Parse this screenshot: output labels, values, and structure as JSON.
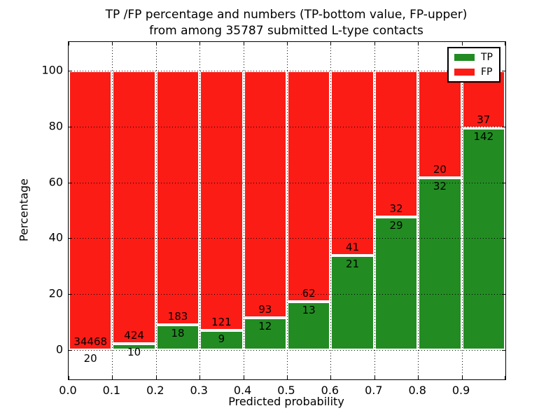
{
  "title": {
    "line1": "TP /FP percentage and numbers (TP-bottom value, FP-upper)",
    "line2": "from among 35787 submitted L-type contacts"
  },
  "axes": {
    "xlabel": "Predicted probability",
    "ylabel": "Percentage",
    "x_ticks": [
      "0.0",
      "0.1",
      "0.2",
      "0.3",
      "0.4",
      "0.5",
      "0.6",
      "0.7",
      "0.8",
      "0.9"
    ],
    "y_ticks": [
      "0",
      "20",
      "40",
      "60",
      "80",
      "100"
    ],
    "y_tick_values": [
      0,
      20,
      40,
      60,
      80,
      100
    ]
  },
  "legend": {
    "position": "upper right",
    "items": [
      {
        "label": "TP",
        "color": "#228c22"
      },
      {
        "label": "FP",
        "color": "#fc1c16"
      }
    ]
  },
  "chart_data": {
    "type": "bar",
    "stacked": true,
    "normalized": "each bin scaled to 100%",
    "title": "TP /FP percentage and numbers (TP-bottom value, FP-upper) from among 35787 submitted L-type contacts",
    "xlabel": "Predicted probability",
    "ylabel": "Percentage",
    "xlim": [
      0.0,
      1.0
    ],
    "ylim": [
      -11,
      110
    ],
    "grid": "dotted",
    "legend_position": "upper right",
    "total_contacts": 35787,
    "bin_edges": [
      0.0,
      0.1,
      0.2,
      0.3,
      0.4,
      0.5,
      0.6,
      0.7,
      0.8,
      0.9,
      1.0
    ],
    "categories": [
      "0.0-0.1",
      "0.1-0.2",
      "0.2-0.3",
      "0.3-0.4",
      "0.4-0.5",
      "0.5-0.6",
      "0.6-0.7",
      "0.7-0.8",
      "0.8-0.9",
      "0.9-1.0"
    ],
    "series": [
      {
        "name": "TP",
        "color": "#228c22",
        "values": [
          20,
          10,
          18,
          9,
          12,
          13,
          21,
          29,
          32,
          142
        ]
      },
      {
        "name": "FP",
        "color": "#fc1c16",
        "values": [
          34468,
          424,
          183,
          121,
          93,
          62,
          41,
          32,
          20,
          37
        ]
      }
    ],
    "tp_percent": [
      0.06,
      2.3,
      8.96,
      6.92,
      11.43,
      17.33,
      33.87,
      47.54,
      61.54,
      79.33
    ]
  }
}
